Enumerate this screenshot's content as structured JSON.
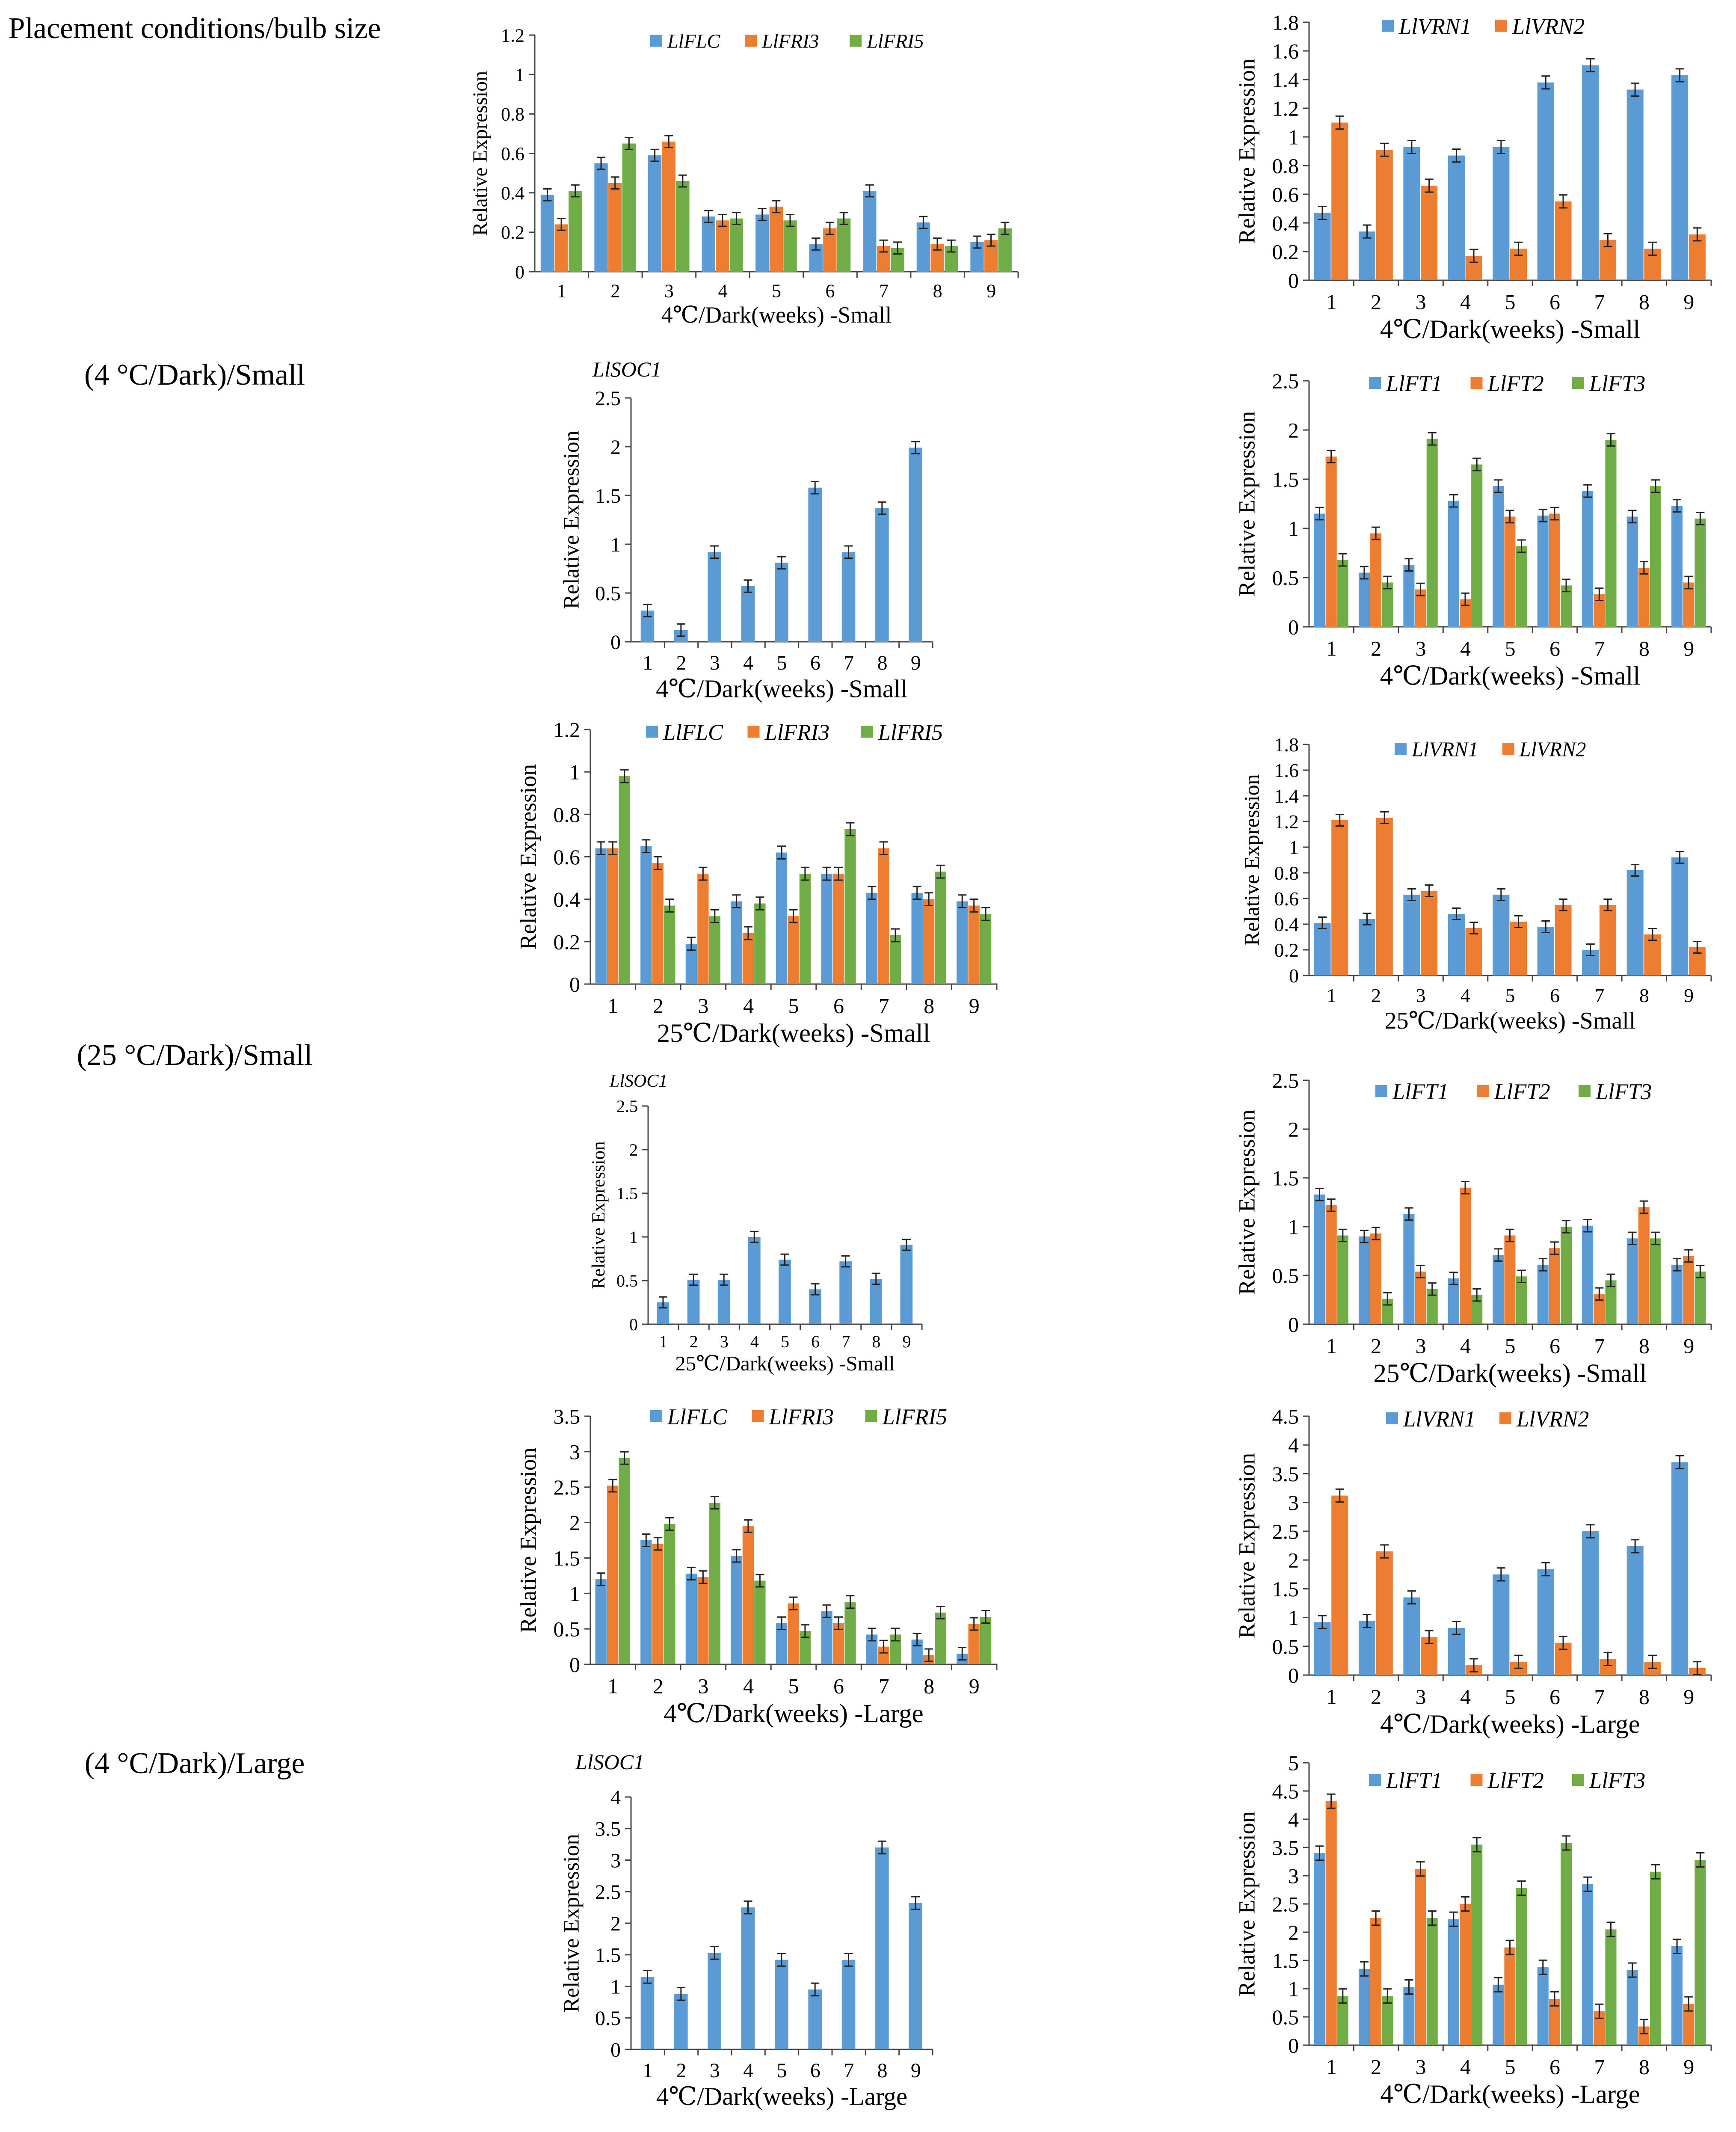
{
  "row_labels": {
    "header": "Placement conditions/bulb size",
    "r1": "(4 °C/Dark)/Small",
    "r2": "(25 °C/Dark)/Small",
    "r3": "(4 °C/Dark)/Large"
  },
  "colors": {
    "series1": "#5B9BD5",
    "series2": "#ED7D31",
    "series3": "#70AD47"
  },
  "chart_data": [
    {
      "id": "c1",
      "type": "bar",
      "title": "",
      "xlabel": "4℃/Dark(weeks) -Small",
      "ylabel": "Relative Expression",
      "categories": [
        "1",
        "2",
        "3",
        "4",
        "5",
        "6",
        "7",
        "8",
        "9"
      ],
      "ylim": [
        0,
        1.2
      ],
      "yticks": [
        "0",
        "0.2",
        "0.4",
        "0.6",
        "0.8",
        "1",
        "1.2"
      ],
      "series": [
        {
          "name": "LlFLC",
          "values": [
            0.39,
            0.55,
            0.59,
            0.28,
            0.29,
            0.14,
            0.41,
            0.25,
            0.15
          ]
        },
        {
          "name": "LlFRI3",
          "values": [
            0.24,
            0.45,
            0.66,
            0.26,
            0.33,
            0.22,
            0.13,
            0.14,
            0.16
          ]
        },
        {
          "name": "LlFRI5",
          "values": [
            0.41,
            0.65,
            0.46,
            0.27,
            0.26,
            0.27,
            0.12,
            0.13,
            0.22
          ]
        }
      ]
    },
    {
      "id": "c2",
      "type": "bar",
      "title": "",
      "xlabel": "4℃/Dark(weeks) -Small",
      "ylabel": "Relative Expression",
      "categories": [
        "1",
        "2",
        "3",
        "4",
        "5",
        "6",
        "7",
        "8",
        "9"
      ],
      "ylim": [
        0,
        1.8
      ],
      "yticks": [
        "0",
        "0.2",
        "0.4",
        "0.6",
        "0.8",
        "1",
        "1.2",
        "1.4",
        "1.6",
        "1.8"
      ],
      "series": [
        {
          "name": "LlVRN1",
          "values": [
            0.47,
            0.34,
            0.93,
            0.87,
            0.93,
            1.38,
            1.5,
            1.33,
            1.43
          ]
        },
        {
          "name": "LlVRN2",
          "values": [
            1.1,
            0.91,
            0.66,
            0.17,
            0.22,
            0.55,
            0.28,
            0.22,
            0.32
          ]
        }
      ]
    },
    {
      "id": "c3",
      "type": "bar",
      "title": "LlSOC1",
      "xlabel": "4℃/Dark(weeks) -Small",
      "ylabel": "Relative Expression",
      "categories": [
        "1",
        "2",
        "3",
        "4",
        "5",
        "6",
        "7",
        "8",
        "9"
      ],
      "ylim": [
        0,
        2.5
      ],
      "yticks": [
        "0",
        "0.5",
        "1",
        "1.5",
        "2",
        "2.5"
      ],
      "series": [
        {
          "name": "LlSOC1",
          "values": [
            0.32,
            0.12,
            0.92,
            0.57,
            0.81,
            1.58,
            0.92,
            1.37,
            1.99
          ]
        }
      ]
    },
    {
      "id": "c4",
      "type": "bar",
      "title": "",
      "xlabel": "4℃/Dark(weeks) -Small",
      "ylabel": "Relative Expression",
      "categories": [
        "1",
        "2",
        "3",
        "4",
        "5",
        "6",
        "7",
        "8",
        "9"
      ],
      "ylim": [
        0,
        2.5
      ],
      "yticks": [
        "0",
        "0.5",
        "1",
        "1.5",
        "2",
        "2.5"
      ],
      "series": [
        {
          "name": "LlFT1",
          "values": [
            1.15,
            0.55,
            0.63,
            1.28,
            1.43,
            1.13,
            1.38,
            1.12,
            1.23
          ]
        },
        {
          "name": "LlFT2",
          "values": [
            1.73,
            0.95,
            0.38,
            0.28,
            1.12,
            1.15,
            0.33,
            0.6,
            0.45
          ]
        },
        {
          "name": "LlFT3",
          "values": [
            0.68,
            0.45,
            1.91,
            1.65,
            0.82,
            0.42,
            1.9,
            1.43,
            1.1
          ]
        }
      ]
    },
    {
      "id": "c5",
      "type": "bar",
      "title": "",
      "xlabel": "25℃/Dark(weeks) -Small",
      "ylabel": "Relative Expression",
      "categories": [
        "1",
        "2",
        "3",
        "4",
        "5",
        "6",
        "7",
        "8",
        "9"
      ],
      "ylim": [
        0,
        1.2
      ],
      "yticks": [
        "0",
        "0.2",
        "0.4",
        "0.6",
        "0.8",
        "1",
        "1.2"
      ],
      "series": [
        {
          "name": "LlFLC",
          "values": [
            0.64,
            0.65,
            0.19,
            0.39,
            0.62,
            0.52,
            0.43,
            0.43,
            0.39
          ]
        },
        {
          "name": "LlFRI3",
          "values": [
            0.64,
            0.57,
            0.52,
            0.24,
            0.32,
            0.52,
            0.64,
            0.4,
            0.37
          ]
        },
        {
          "name": "LlFRI5",
          "values": [
            0.98,
            0.37,
            0.32,
            0.38,
            0.52,
            0.73,
            0.23,
            0.53,
            0.33
          ]
        }
      ]
    },
    {
      "id": "c6",
      "type": "bar",
      "title": "",
      "xlabel": "25℃/Dark(weeks) -Small",
      "ylabel": "Relative Expression",
      "categories": [
        "1",
        "2",
        "3",
        "4",
        "5",
        "6",
        "7",
        "8",
        "9"
      ],
      "ylim": [
        0,
        1.8
      ],
      "yticks": [
        "0",
        "0.2",
        "0.4",
        "0.6",
        "0.8",
        "1",
        "1.2",
        "1.4",
        "1.6",
        "1.8"
      ],
      "series": [
        {
          "name": "LlVRN1",
          "values": [
            0.41,
            0.44,
            0.63,
            0.48,
            0.63,
            0.38,
            0.2,
            0.82,
            0.92
          ]
        },
        {
          "name": "LlVRN2",
          "values": [
            1.21,
            1.23,
            0.66,
            0.37,
            0.42,
            0.55,
            0.55,
            0.32,
            0.22
          ]
        }
      ]
    },
    {
      "id": "c7",
      "type": "bar",
      "title": "LlSOC1",
      "xlabel": "25℃/Dark(weeks) -Small",
      "ylabel": "Relative Expression",
      "categories": [
        "1",
        "2",
        "3",
        "4",
        "5",
        "6",
        "7",
        "8",
        "9"
      ],
      "ylim": [
        0,
        2.5
      ],
      "yticks": [
        "0",
        "0.5",
        "1",
        "1.5",
        "2",
        "2.5"
      ],
      "series": [
        {
          "name": "LlSOC1",
          "values": [
            0.25,
            0.51,
            0.51,
            1.0,
            0.74,
            0.4,
            0.72,
            0.52,
            0.91
          ]
        }
      ]
    },
    {
      "id": "c8",
      "type": "bar",
      "title": "",
      "xlabel": "25℃/Dark(weeks) -Small",
      "ylabel": "Relative Expression",
      "categories": [
        "1",
        "2",
        "3",
        "4",
        "5",
        "6",
        "7",
        "8",
        "9"
      ],
      "ylim": [
        0,
        2.5
      ],
      "yticks": [
        "0",
        "0.5",
        "1",
        "1.5",
        "2",
        "2.5"
      ],
      "series": [
        {
          "name": "LlFT1",
          "values": [
            1.33,
            0.9,
            1.13,
            0.47,
            0.71,
            0.61,
            1.01,
            0.88,
            0.61
          ]
        },
        {
          "name": "LlFT2",
          "values": [
            1.22,
            0.93,
            0.54,
            1.4,
            0.91,
            0.78,
            0.31,
            1.2,
            0.7
          ]
        },
        {
          "name": "LlFT3",
          "values": [
            0.91,
            0.26,
            0.36,
            0.3,
            0.49,
            1.0,
            0.45,
            0.88,
            0.54
          ]
        }
      ]
    },
    {
      "id": "c9",
      "type": "bar",
      "title": "",
      "xlabel": "4℃/Dark(weeks) -Large",
      "ylabel": "Relative Expression",
      "categories": [
        "1",
        "2",
        "3",
        "4",
        "5",
        "6",
        "7",
        "8",
        "9"
      ],
      "ylim": [
        0,
        3.5
      ],
      "yticks": [
        "0",
        "0.5",
        "1",
        "1.5",
        "2",
        "2.5",
        "3",
        "3.5"
      ],
      "series": [
        {
          "name": "LlFLC",
          "values": [
            1.2,
            1.75,
            1.28,
            1.53,
            0.58,
            0.75,
            0.42,
            0.35,
            0.15
          ]
        },
        {
          "name": "LlFRI3",
          "values": [
            2.52,
            1.7,
            1.23,
            1.95,
            0.86,
            0.58,
            0.25,
            0.13,
            0.57
          ]
        },
        {
          "name": "LlFRI5",
          "values": [
            2.91,
            1.98,
            2.28,
            1.18,
            0.47,
            0.88,
            0.42,
            0.73,
            0.67
          ]
        }
      ]
    },
    {
      "id": "c10",
      "type": "bar",
      "title": "",
      "xlabel": "4℃/Dark(weeks) -Large",
      "ylabel": "Relative Expression",
      "categories": [
        "1",
        "2",
        "3",
        "4",
        "5",
        "6",
        "7",
        "8",
        "9"
      ],
      "ylim": [
        0,
        4.5
      ],
      "yticks": [
        "0",
        "0.5",
        "1",
        "1.5",
        "2",
        "2.5",
        "3",
        "3.5",
        "4",
        "4.5"
      ],
      "series": [
        {
          "name": "LlVRN1",
          "values": [
            0.92,
            0.94,
            1.35,
            0.82,
            1.75,
            1.84,
            2.5,
            2.24,
            3.7
          ]
        },
        {
          "name": "LlVRN2",
          "values": [
            3.12,
            2.15,
            0.66,
            0.17,
            0.23,
            0.56,
            0.28,
            0.23,
            0.12
          ]
        }
      ]
    },
    {
      "id": "c11",
      "type": "bar",
      "title": "LlSOC1",
      "xlabel": "4℃/Dark(weeks) -Large",
      "ylabel": "Relative Expression",
      "categories": [
        "1",
        "2",
        "3",
        "4",
        "5",
        "6",
        "7",
        "8",
        "9"
      ],
      "ylim": [
        0,
        4
      ],
      "yticks": [
        "0",
        "0.5",
        "1",
        "1.5",
        "2",
        "2.5",
        "3",
        "3.5",
        "4"
      ],
      "series": [
        {
          "name": "LlSOC1",
          "values": [
            1.15,
            0.88,
            1.53,
            2.25,
            1.42,
            0.95,
            1.42,
            3.2,
            2.32
          ]
        }
      ]
    },
    {
      "id": "c12",
      "type": "bar",
      "title": "",
      "xlabel": "4℃/Dark(weeks) -Large",
      "ylabel": "Relative Expression",
      "categories": [
        "1",
        "2",
        "3",
        "4",
        "5",
        "6",
        "7",
        "8",
        "9"
      ],
      "ylim": [
        0,
        5
      ],
      "yticks": [
        "0",
        "0.5",
        "1",
        "1.5",
        "2",
        "2.5",
        "3",
        "3.5",
        "4",
        "4.5",
        "5"
      ],
      "series": [
        {
          "name": "LlFT1",
          "values": [
            3.4,
            1.35,
            1.03,
            2.23,
            1.07,
            1.38,
            2.85,
            1.33,
            1.75
          ]
        },
        {
          "name": "LlFT2",
          "values": [
            4.32,
            2.25,
            3.12,
            2.5,
            1.73,
            0.82,
            0.6,
            0.33,
            0.73
          ]
        },
        {
          "name": "LlFT3",
          "values": [
            0.87,
            0.87,
            2.25,
            3.55,
            2.78,
            3.58,
            2.05,
            3.07,
            3.28
          ]
        }
      ]
    }
  ]
}
